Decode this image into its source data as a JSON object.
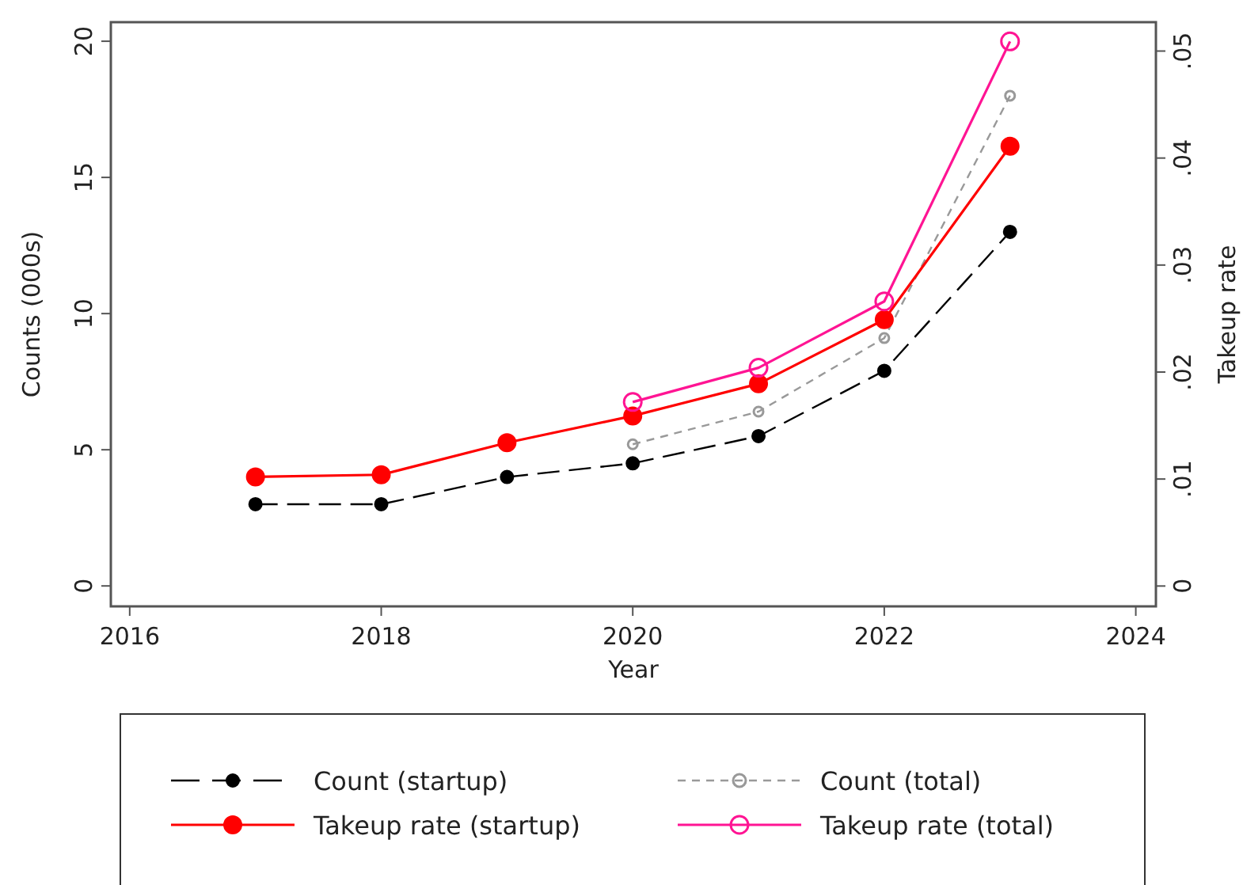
{
  "chart_data": {
    "type": "line",
    "xlabel": "Year",
    "ylabel": "Counts (000s)",
    "y2label": "Takeup rate",
    "x": [
      2017,
      2018,
      2019,
      2020,
      2021,
      2022,
      2023
    ],
    "xlim": [
      2015.85,
      2024.16
    ],
    "xticks": [
      2016,
      2018,
      2020,
      2022,
      2024
    ],
    "ylim": [
      -0.75,
      20.7
    ],
    "yticks": [
      0,
      5,
      10,
      15,
      20
    ],
    "y2lim": [
      -0.0019,
      0.0527
    ],
    "y2ticks": [
      0,
      {
        "value": 0.01,
        "label": ".01"
      },
      {
        "value": 0.02,
        "label": ".02"
      },
      {
        "value": 0.03,
        "label": ".03"
      },
      {
        "value": 0.04,
        "label": ".04"
      },
      {
        "value": 0.05,
        "label": ".05"
      }
    ],
    "grid": false,
    "legend": "bottom",
    "marker": "circle",
    "series": [
      {
        "name": "Count (startup)",
        "color": "#000000",
        "line_style": "dashed",
        "values": [
          3.0,
          3.0,
          4.0,
          4.5,
          5.5,
          7.9,
          13.0
        ]
      },
      {
        "name": "Count (total)",
        "color": "#999999",
        "line_style": "dashed",
        "values": [
          null,
          null,
          null,
          5.2,
          6.4,
          9.1,
          18.0
        ]
      },
      {
        "name": "Takeup rate (startup)",
        "color": "#ff0000",
        "line_style": "solid",
        "axis": "y2",
        "values": [
          0.0102,
          0.0104,
          0.0134,
          0.0159,
          0.0189,
          0.0249,
          0.0411
        ]
      },
      {
        "name": "Takeup rate (total)",
        "color": "#ff1493",
        "line_style": "solid",
        "axis": "y2",
        "values": [
          null,
          null,
          null,
          0.0172,
          0.0204,
          0.0266,
          0.0509
        ]
      }
    ]
  }
}
